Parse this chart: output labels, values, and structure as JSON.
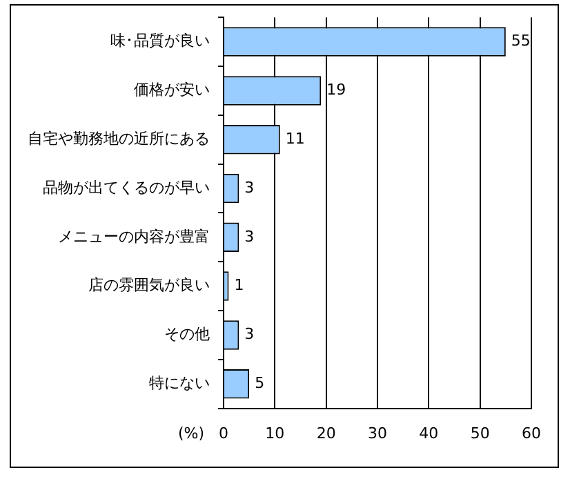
{
  "chart_data": {
    "type": "bar",
    "orientation": "horizontal",
    "xlabel": "(%)",
    "categories": [
      "味･品質が良い",
      "価格が安い",
      "自宅や勤務地の近所にある",
      "品物が出てくるのが早い",
      "メニューの内容が豊富",
      "店の雰囲気が良い",
      "その他",
      "特にない"
    ],
    "values": [
      55,
      19,
      11,
      3,
      3,
      1,
      3,
      5
    ],
    "color": "#99ccff",
    "xlim": [
      0,
      60
    ],
    "xticks": [
      0,
      10,
      20,
      30,
      40,
      50,
      60
    ],
    "grid": "x",
    "data_labels": true,
    "legend": false
  }
}
